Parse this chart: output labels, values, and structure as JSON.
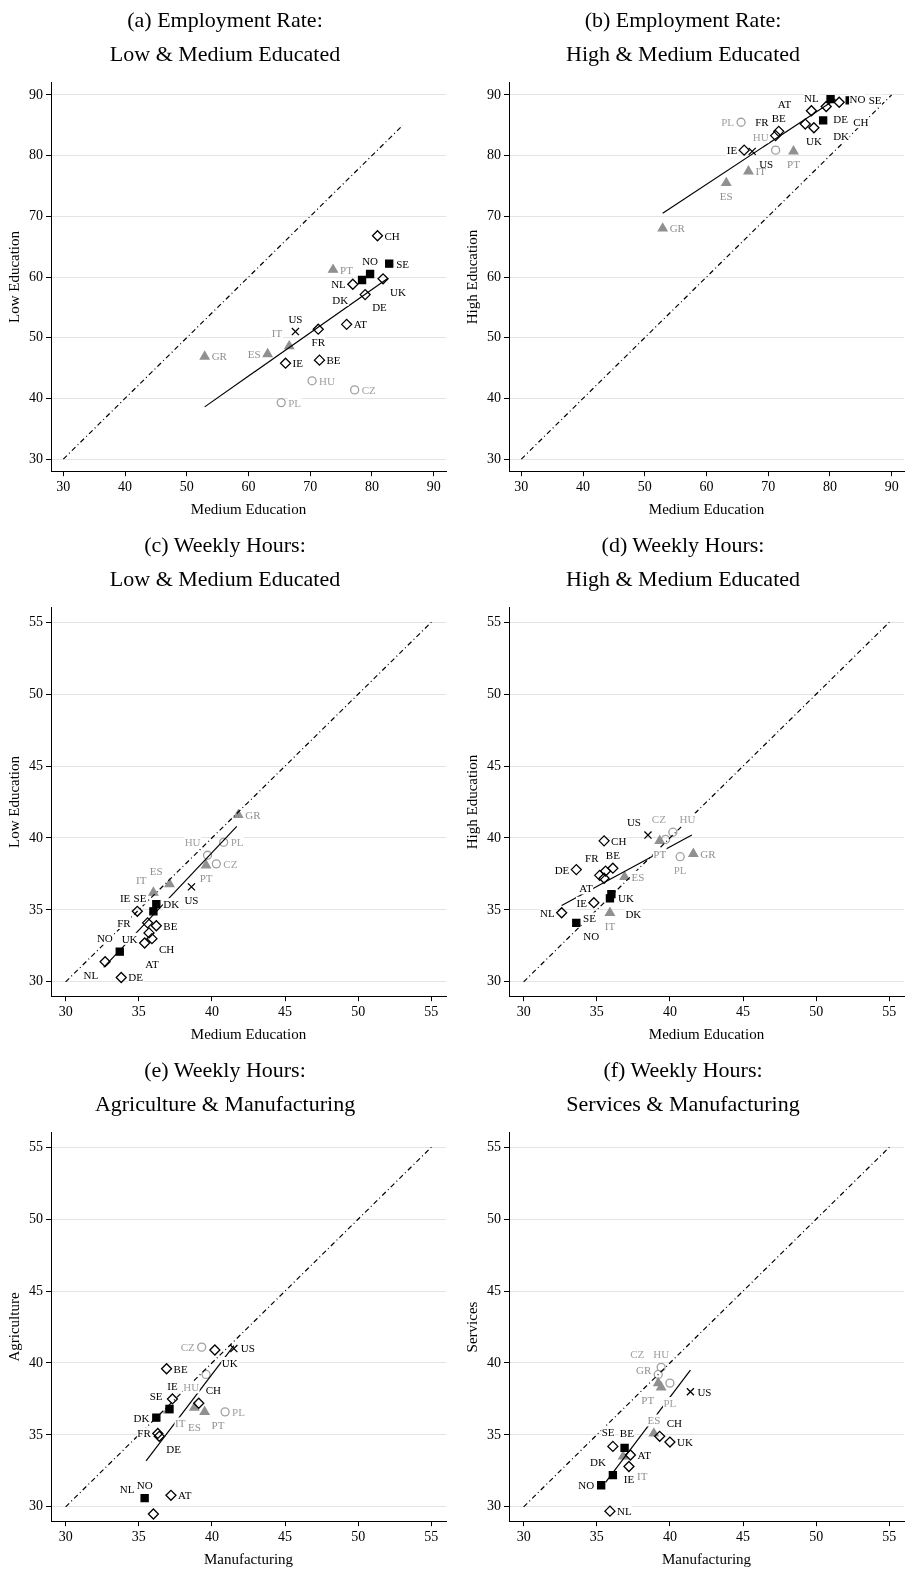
{
  "chart_data": [
    {
      "type": "scatter",
      "title": "(a) Employment Rate:",
      "subtitle": "Low & Medium Educated",
      "xlabel": "Medium Education",
      "ylabel": "Low Education",
      "xlim": [
        28,
        92
      ],
      "ylim": [
        28,
        92
      ],
      "xticks": [
        30,
        40,
        50,
        60,
        70,
        80,
        90
      ],
      "yticks": [
        30,
        40,
        50,
        60,
        70,
        80,
        90
      ],
      "grid": "y",
      "series": [
        {
          "type": "line",
          "color": "#000000",
          "line_style": "dashed",
          "marker": "none",
          "x": [
            30,
            85
          ],
          "values": [
            30,
            85
          ]
        },
        {
          "type": "line",
          "color": "#000000",
          "line_style": "solid",
          "marker": "none",
          "x": [
            52.9,
            82.6
          ],
          "values": [
            38.6,
            59.8
          ]
        },
        {
          "color": "#000000",
          "marker": "diamond",
          "x": [
            80.9,
            76.9,
            81.8,
            78.9,
            75.9,
            71.3,
            66.0,
            71.5
          ],
          "values": [
            66.8,
            58.8,
            59.7,
            57.1,
            52.2,
            51.4,
            45.8,
            46.3
          ],
          "value_labels": [
            "CH",
            "NL",
            "UK",
            "DE",
            "AT",
            "FR",
            "IE",
            "BE"
          ]
        },
        {
          "color": "#000000",
          "marker": "square",
          "x": [
            82.8,
            79.7,
            78.4
          ],
          "values": [
            62.2,
            60.5,
            59.5
          ],
          "value_labels": [
            "SE",
            "NO",
            "DK"
          ]
        },
        {
          "color": "#909090",
          "marker": "triangle",
          "x": [
            73.7,
            66.6,
            63.1,
            52.9
          ],
          "values": [
            61.2,
            48.6,
            47.3,
            46.9
          ],
          "value_labels": [
            "PT",
            "IT",
            "ES",
            "GR"
          ]
        },
        {
          "color": "#a0a0a0",
          "marker": "circle",
          "x": [
            70.3,
            77.2,
            65.3
          ],
          "values": [
            42.9,
            41.4,
            39.3
          ],
          "value_labels": [
            "HU",
            "CZ",
            "PL"
          ]
        },
        {
          "color": "#000000",
          "marker": "cross",
          "x": [
            67.6
          ],
          "values": [
            51.0
          ],
          "value_labels": [
            "US"
          ]
        }
      ]
    },
    {
      "type": "scatter",
      "title": "(b) Employment Rate:",
      "subtitle": "High & Medium Educated",
      "xlabel": "Medium Education",
      "ylabel": "High Education",
      "xlim": [
        28,
        92
      ],
      "ylim": [
        28,
        92
      ],
      "xticks": [
        30,
        40,
        50,
        60,
        70,
        80,
        90
      ],
      "yticks": [
        30,
        40,
        50,
        60,
        70,
        80,
        90
      ],
      "grid": "y",
      "series": [
        {
          "type": "line",
          "color": "#000000",
          "line_style": "dashed",
          "marker": "none",
          "x": [
            30,
            90
          ],
          "values": [
            30,
            90
          ]
        },
        {
          "type": "line",
          "color": "#000000",
          "line_style": "solid",
          "marker": "none",
          "x": [
            52.9,
            80.9
          ],
          "values": [
            70.5,
            89.3
          ]
        },
        {
          "color": "#000000",
          "marker": "diamond",
          "x": [
            66.1,
            71.7,
            71.2,
            76.0,
            77.4,
            77.0,
            79.4,
            81.5
          ],
          "values": [
            80.9,
            84.0,
            83.3,
            85.2,
            84.6,
            87.4,
            88.1,
            88.8
          ],
          "value_labels": [
            "IE",
            "BE",
            "FR",
            "AT",
            "UK",
            "NL",
            "DE",
            "CH"
          ]
        },
        {
          "color": "#000000",
          "marker": "square",
          "x": [
            78.9,
            80.1,
            83.2
          ],
          "values": [
            85.8,
            89.3,
            89.1
          ],
          "value_labels": [
            "DK",
            "NO",
            "SE"
          ]
        },
        {
          "color": "#909090",
          "marker": "triangle",
          "x": [
            52.9,
            63.2,
            66.8,
            74.1
          ],
          "values": [
            68.0,
            75.5,
            77.4,
            80.7
          ],
          "value_labels": [
            "GR",
            "ES",
            "IT",
            "PT"
          ]
        },
        {
          "color": "#a0a0a0",
          "marker": "circle",
          "x": [
            65.6,
            71.2
          ],
          "values": [
            85.5,
            80.9
          ],
          "value_labels": [
            "PL",
            "HU"
          ]
        },
        {
          "color": "#000000",
          "marker": "cross",
          "x": [
            67.4
          ],
          "values": [
            80.7
          ],
          "value_labels": [
            "US"
          ]
        }
      ]
    },
    {
      "type": "scatter",
      "title": "(c) Weekly Hours:",
      "subtitle": "Low & Medium Educated",
      "xlabel": "Medium Education",
      "ylabel": "Low Education",
      "xlim": [
        29,
        56
      ],
      "ylim": [
        29,
        56
      ],
      "xticks": [
        30,
        35,
        40,
        45,
        50,
        55
      ],
      "yticks": [
        30,
        35,
        40,
        45,
        50,
        55
      ],
      "grid": "y",
      "series": [
        {
          "type": "line",
          "color": "#000000",
          "line_style": "dashed",
          "marker": "none",
          "x": [
            30,
            55
          ],
          "values": [
            30,
            55
          ]
        },
        {
          "type": "line",
          "color": "#000000",
          "line_style": "solid",
          "marker": "none",
          "x": [
            32.6,
            41.7
          ],
          "values": [
            31.0,
            40.8
          ]
        },
        {
          "color": "#000000",
          "marker": "diamond",
          "x": [
            34.9,
            35.6,
            36.2,
            35.7,
            35.9,
            35.4,
            32.7,
            33.8
          ],
          "values": [
            34.9,
            34.1,
            33.9,
            33.4,
            33.0,
            32.7,
            31.4,
            30.3
          ],
          "value_labels": [
            "IE",
            "UK",
            "BE",
            "CH",
            "AT",
            "FR",
            "NL",
            "DE"
          ]
        },
        {
          "color": "#000000",
          "marker": "square",
          "x": [
            36.2,
            36.0,
            33.7
          ],
          "values": [
            35.4,
            34.9,
            32.1
          ],
          "value_labels": [
            "DK",
            "SE",
            "NO"
          ]
        },
        {
          "color": "#909090",
          "marker": "triangle",
          "x": [
            41.8,
            39.6,
            37.1,
            36.0
          ],
          "values": [
            41.6,
            38.1,
            36.8,
            36.2
          ],
          "value_labels": [
            "GR",
            "PT",
            "ES",
            "IT"
          ]
        },
        {
          "color": "#a0a0a0",
          "marker": "circle",
          "x": [
            40.8,
            39.7,
            40.3
          ],
          "values": [
            39.7,
            38.8,
            38.2
          ],
          "value_labels": [
            "PL",
            "HU",
            "CZ"
          ]
        },
        {
          "color": "#000000",
          "marker": "cross",
          "x": [
            38.6
          ],
          "values": [
            36.6
          ],
          "value_labels": [
            "US"
          ]
        }
      ]
    },
    {
      "type": "scatter",
      "title": "(d) Weekly Hours:",
      "subtitle": "High & Medium Educated",
      "xlabel": "Medium Education",
      "ylabel": "High Education",
      "xlim": [
        29,
        56
      ],
      "ylim": [
        29,
        56
      ],
      "xticks": [
        30,
        35,
        40,
        45,
        50,
        55
      ],
      "yticks": [
        30,
        35,
        40,
        45,
        50,
        55
      ],
      "grid": "y",
      "series": [
        {
          "type": "line",
          "color": "#000000",
          "line_style": "dashed",
          "marker": "none",
          "x": [
            30,
            55
          ],
          "values": [
            30,
            55
          ]
        },
        {
          "type": "line",
          "color": "#000000",
          "line_style": "solid",
          "marker": "none",
          "x": [
            32.6,
            41.5
          ],
          "values": [
            35.3,
            40.2
          ]
        },
        {
          "color": "#000000",
          "marker": "diamond",
          "x": [
            35.5,
            33.6,
            36.1,
            35.6,
            35.2,
            35.5,
            34.8,
            32.6
          ],
          "values": [
            39.8,
            37.8,
            37.9,
            37.7,
            37.4,
            37.2,
            35.5,
            34.8
          ],
          "value_labels": [
            "CH",
            "DE",
            "BE",
            "FR",
            "AT",
            "UK",
            "IE",
            "NL"
          ]
        },
        {
          "color": "#000000",
          "marker": "square",
          "x": [
            36.0,
            35.9,
            33.6
          ],
          "values": [
            36.1,
            35.8,
            34.1
          ],
          "value_labels": [
            "DK",
            "SE",
            "NO"
          ]
        },
        {
          "color": "#909090",
          "marker": "triangle",
          "x": [
            39.3,
            41.6,
            36.9,
            35.9
          ],
          "values": [
            39.8,
            38.9,
            37.3,
            34.8
          ],
          "value_labels": [
            "PT",
            "GR",
            "ES",
            "IT"
          ]
        },
        {
          "color": "#a0a0a0",
          "marker": "circle",
          "x": [
            40.2,
            39.7,
            40.7
          ],
          "values": [
            40.4,
            39.9,
            38.7
          ],
          "value_labels": [
            "CZ",
            "HU",
            "PL"
          ]
        },
        {
          "color": "#000000",
          "marker": "cross",
          "x": [
            38.5
          ],
          "values": [
            40.2
          ],
          "value_labels": [
            "US"
          ]
        }
      ]
    },
    {
      "type": "scatter",
      "title": "(e) Weekly Hours:",
      "subtitle": "Agriculture & Manufacturing",
      "xlabel": "Manufacturing",
      "ylabel": "Agriculture",
      "xlim": [
        29,
        56
      ],
      "ylim": [
        29,
        56
      ],
      "xticks": [
        30,
        35,
        40,
        45,
        50,
        55
      ],
      "yticks": [
        30,
        35,
        40,
        45,
        50,
        55
      ],
      "grid": "y",
      "series": [
        {
          "type": "line",
          "color": "#000000",
          "line_style": "dashed",
          "marker": "none",
          "x": [
            30,
            55
          ],
          "values": [
            30,
            55
          ]
        },
        {
          "type": "line",
          "color": "#000000",
          "line_style": "solid",
          "marker": "none",
          "x": [
            35.5,
            41.5
          ],
          "values": [
            33.2,
            41.2
          ]
        },
        {
          "color": "#000000",
          "marker": "diamond",
          "x": [
            40.2,
            36.9,
            37.3,
            39.1,
            36.3,
            36.4,
            37.2,
            36.0
          ],
          "values": [
            40.9,
            39.6,
            37.5,
            37.2,
            35.1,
            34.9,
            30.8,
            29.5
          ],
          "value_labels": [
            "UK",
            "BE",
            "IE",
            "CH",
            "FR",
            "DE",
            "AT",
            "NL"
          ]
        },
        {
          "color": "#000000",
          "marker": "square",
          "x": [
            37.1,
            36.2,
            35.4
          ],
          "values": [
            36.8,
            36.2,
            30.6
          ],
          "value_labels": [
            "SE",
            "DK",
            "NO"
          ]
        },
        {
          "color": "#909090",
          "marker": "triangle",
          "x": [
            37.0,
            38.8,
            39.5
          ],
          "values": [
            36.7,
            36.9,
            36.6
          ],
          "value_labels": [
            "IT",
            "ES",
            "PT"
          ]
        },
        {
          "color": "#a0a0a0",
          "marker": "circle",
          "x": [
            39.3,
            39.6,
            40.9
          ],
          "values": [
            41.1,
            39.2,
            36.6
          ],
          "value_labels": [
            "CZ",
            "HU",
            "PL"
          ]
        },
        {
          "color": "#000000",
          "marker": "cross",
          "x": [
            41.5
          ],
          "values": [
            41.0
          ],
          "value_labels": [
            "US"
          ]
        }
      ]
    },
    {
      "type": "scatter",
      "title": "(f) Weekly Hours:",
      "subtitle": "Services & Manufacturing",
      "xlabel": "Manufacturing",
      "ylabel": "Services",
      "xlim": [
        29,
        56
      ],
      "ylim": [
        29,
        56
      ],
      "xticks": [
        30,
        35,
        40,
        45,
        50,
        55
      ],
      "yticks": [
        30,
        35,
        40,
        45,
        50,
        55
      ],
      "grid": "y",
      "series": [
        {
          "type": "line",
          "color": "#000000",
          "line_style": "dashed",
          "marker": "none",
          "x": [
            30,
            55
          ],
          "values": [
            30,
            55
          ]
        },
        {
          "type": "line",
          "color": "#000000",
          "line_style": "solid",
          "marker": "none",
          "x": [
            35.6,
            41.4
          ],
          "values": [
            31.7,
            39.5
          ]
        },
        {
          "color": "#000000",
          "marker": "diamond",
          "x": [
            39.3,
            40.0,
            36.1,
            37.3,
            37.2,
            35.9
          ],
          "values": [
            34.9,
            34.5,
            34.2,
            33.6,
            32.8,
            29.7
          ],
          "value_labels": [
            "CH",
            "UK",
            "BE",
            "AT",
            "IE",
            "NL"
          ]
        },
        {
          "color": "#000000",
          "marker": "square",
          "x": [
            36.9,
            36.1,
            35.3
          ],
          "values": [
            34.1,
            32.2,
            31.5
          ],
          "value_labels": [
            "SE",
            "DK",
            "NO"
          ]
        },
        {
          "color": "#909090",
          "marker": "triangle",
          "x": [
            39.2,
            39.4,
            38.9,
            36.8
          ],
          "values": [
            38.6,
            38.3,
            35.1,
            33.5
          ],
          "value_labels": [
            "GR",
            "PT",
            "ES",
            "IT"
          ]
        },
        {
          "color": "#a0a0a0",
          "marker": "circle",
          "x": [
            39.4,
            39.2,
            40.0
          ],
          "values": [
            39.7,
            39.2,
            38.6
          ],
          "value_labels": [
            "HU",
            "CZ",
            "PL"
          ]
        },
        {
          "color": "#000000",
          "marker": "cross",
          "x": [
            41.4
          ],
          "values": [
            38.0
          ],
          "value_labels": [
            "US"
          ]
        }
      ]
    }
  ]
}
